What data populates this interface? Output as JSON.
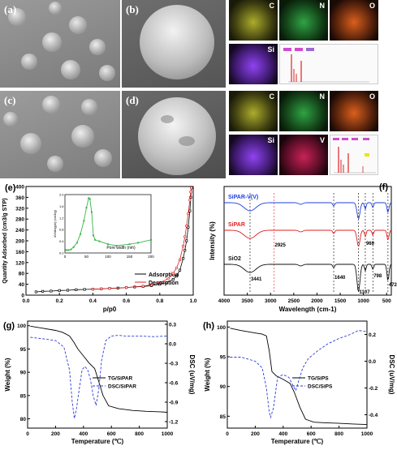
{
  "panels": {
    "a": {
      "label": "(a)"
    },
    "b": {
      "label": "(b)"
    },
    "c": {
      "label": "(c)"
    },
    "d": {
      "label": "(d)"
    },
    "e": {
      "label": "(e)"
    },
    "f": {
      "label": "(f)"
    },
    "g": {
      "label": "(g)"
    },
    "h": {
      "label": "(h)"
    }
  },
  "eds_row1": [
    {
      "label": "C",
      "color": "#c8c832"
    },
    {
      "label": "N",
      "color": "#34b34a"
    },
    {
      "label": "O",
      "color": "#e0601a"
    },
    {
      "label": "Si",
      "color": "#8a3cf0"
    }
  ],
  "eds_row2": [
    {
      "label": "C",
      "color": "#c8c832"
    },
    {
      "label": "N",
      "color": "#34b34a"
    },
    {
      "label": "O",
      "color": "#e0601a"
    },
    {
      "label": "Si",
      "color": "#8a3cf0"
    },
    {
      "label": "V",
      "color": "#d0245a"
    }
  ],
  "chart_data": [
    {
      "panel": "e",
      "type": "scatter",
      "xlabel": "p/p0",
      "ylabel": "Quantity Adsorbed (cm3/g STP)",
      "xlim": [
        0.0,
        1.0
      ],
      "ylim": [
        0,
        400
      ],
      "xticks": [
        "0.0",
        "0.2",
        "0.4",
        "0.6",
        "0.8",
        "1.0"
      ],
      "yticks": [
        "0",
        "40",
        "80",
        "120",
        "160",
        "200",
        "240",
        "280",
        "320",
        "360",
        "400"
      ],
      "legend": "bottom-right",
      "series": [
        {
          "name": "Adsorption",
          "color": "#000000",
          "x": [
            0.06,
            0.1,
            0.15,
            0.2,
            0.25,
            0.3,
            0.35,
            0.4,
            0.45,
            0.5,
            0.55,
            0.6,
            0.65,
            0.7,
            0.75,
            0.8,
            0.84,
            0.88,
            0.9,
            0.92,
            0.94,
            0.95,
            0.96,
            0.97,
            0.98,
            0.985,
            0.99
          ],
          "y": [
            12,
            14,
            15,
            17,
            18,
            20,
            21,
            22,
            23,
            25,
            26,
            28,
            30,
            32,
            35,
            40,
            46,
            58,
            70,
            92,
            135,
            165,
            200,
            250,
            310,
            360,
            395
          ]
        },
        {
          "name": "Desorption",
          "color": "#e02020",
          "x": [
            0.99,
            0.985,
            0.98,
            0.97,
            0.96,
            0.95,
            0.94,
            0.92,
            0.9,
            0.88,
            0.85,
            0.8,
            0.75,
            0.7,
            0.6,
            0.5,
            0.45,
            0.4
          ],
          "y": [
            395,
            380,
            350,
            300,
            255,
            215,
            180,
            130,
            100,
            80,
            60,
            46,
            38,
            33,
            28,
            25,
            23,
            22
          ]
        }
      ],
      "inset": {
        "type": "line",
        "xlabel": "Pore width (nm)",
        "ylabel": "dV/dlog(w) (cm3/g)",
        "xlim": [
          0,
          200
        ],
        "ylim": [
          0.0,
          2.0
        ],
        "xticks": [
          "0",
          "50",
          "100",
          "150",
          "200"
        ],
        "yticks": [
          "0.0",
          "0.2",
          "0.4",
          "0.6",
          "0.8",
          "1.0",
          "1.2",
          "1.4",
          "1.6",
          "1.8",
          "2.0"
        ],
        "x": [
          3,
          8,
          14,
          20,
          28,
          36,
          44,
          50,
          55,
          58,
          62,
          66,
          70,
          80,
          100,
          120,
          150,
          170,
          200
        ],
        "y": [
          0.1,
          0.1,
          0.12,
          0.2,
          0.35,
          0.65,
          1.1,
          1.55,
          1.88,
          1.85,
          1.4,
          0.6,
          0.45,
          0.4,
          0.3,
          0.25,
          0.3,
          0.35,
          0.45
        ]
      }
    },
    {
      "panel": "f",
      "type": "line",
      "xlabel": "Wavelength (cm-1)",
      "ylabel": "Intensity (%)",
      "xlim": [
        4000,
        400
      ],
      "xticks": [
        "4000",
        "3500",
        "3000",
        "2500",
        "2000",
        "1500",
        "1000",
        "500"
      ],
      "series": [
        {
          "name": "SiPAR-V(V)",
          "color": "#1f3fe0"
        },
        {
          "name": "SiPAR",
          "color": "#e02020"
        },
        {
          "name": "SiO2",
          "color": "#111111"
        }
      ],
      "annotations": [
        "3441",
        "2925",
        "1640",
        "1107",
        "960",
        "798",
        "472"
      ],
      "dashed_lines": [
        3441,
        2925,
        1640,
        1107,
        960,
        798,
        472
      ]
    },
    {
      "panel": "g",
      "type": "line",
      "xlabel": "Temperature (℃)",
      "ylabel_left": "Weight (%)",
      "ylabel_right": "DSC (uV/mg)",
      "xlim": [
        0,
        1000
      ],
      "ylim_left": [
        78,
        101
      ],
      "ylim_right": [
        -1.3,
        0.35
      ],
      "xticks": [
        "0",
        "200",
        "400",
        "600",
        "800",
        "1000"
      ],
      "yticks_left": [
        "80",
        "85",
        "90",
        "95",
        "100"
      ],
      "yticks_right": [
        "-1.2",
        "-0.9",
        "-0.6",
        "-0.3",
        "0.0",
        "0.3"
      ],
      "legend": "right",
      "series": [
        {
          "name": "TG/SiPAR",
          "color": "#000000",
          "axis": "left",
          "x": [
            20,
            100,
            200,
            250,
            300,
            330,
            360,
            400,
            440,
            480,
            510,
            540,
            580,
            650,
            750,
            850,
            950,
            1000
          ],
          "y": [
            99.9,
            99.5,
            99,
            98.6,
            97.8,
            96.5,
            95,
            93.5,
            92,
            90.8,
            88,
            85,
            82.8,
            82.2,
            81.8,
            81.6,
            81.5,
            81.4
          ]
        },
        {
          "name": "DSC/SiPAR",
          "color": "#2b3bd8",
          "axis": "right",
          "x": [
            20,
            100,
            200,
            260,
            300,
            320,
            335,
            350,
            370,
            390,
            410,
            430,
            450,
            470,
            490,
            510,
            530,
            560,
            600,
            650,
            700,
            800,
            900,
            1000
          ],
          "y": [
            0.1,
            0.08,
            0.05,
            -0.05,
            -0.4,
            -0.9,
            -1.15,
            -1.0,
            -0.7,
            -0.4,
            -0.35,
            -0.4,
            -0.55,
            -0.8,
            -0.95,
            -0.7,
            -0.25,
            0.05,
            0.12,
            0.13,
            0.12,
            0.12,
            0.11,
            0.12
          ]
        }
      ]
    },
    {
      "panel": "h",
      "type": "line",
      "xlabel": "Temperature (℃)",
      "ylabel_left": "Weight (%)",
      "ylabel_right": "DSC (uV/mg)",
      "xlim": [
        0,
        1000
      ],
      "ylim_left": [
        83,
        101
      ],
      "ylim_right": [
        -0.5,
        0.3
      ],
      "xticks": [
        "0",
        "200",
        "400",
        "600",
        "800",
        "1000"
      ],
      "yticks_left": [
        "85",
        "90",
        "95",
        "100"
      ],
      "yticks_right": [
        "-0.4",
        "-0.2",
        "0.0",
        "0.2"
      ],
      "legend": "right",
      "series": [
        {
          "name": "TG/SiPS",
          "color": "#000000",
          "axis": "left",
          "x": [
            20,
            100,
            200,
            250,
            280,
            300,
            320,
            350,
            400,
            450,
            480,
            520,
            560,
            620,
            700,
            800,
            900,
            1000
          ],
          "y": [
            99.8,
            99.4,
            99,
            98.8,
            98.5,
            96,
            92.5,
            91.8,
            91.2,
            90.5,
            89,
            86.5,
            84.5,
            84,
            83.9,
            83.8,
            83.7,
            83.6
          ]
        },
        {
          "name": "DSC/SiPS",
          "color": "#2b3bd8",
          "axis": "right",
          "x": [
            20,
            100,
            200,
            250,
            280,
            300,
            310,
            330,
            360,
            400,
            440,
            470,
            490,
            510,
            540,
            580,
            650,
            720,
            800,
            880,
            940,
            1000
          ],
          "y": [
            0.03,
            0.03,
            0.0,
            -0.05,
            -0.2,
            -0.38,
            -0.42,
            -0.35,
            -0.12,
            -0.1,
            -0.12,
            -0.18,
            -0.22,
            -0.15,
            -0.05,
            0.02,
            0.08,
            0.13,
            0.17,
            0.2,
            0.23,
            0.22
          ]
        }
      ]
    }
  ]
}
